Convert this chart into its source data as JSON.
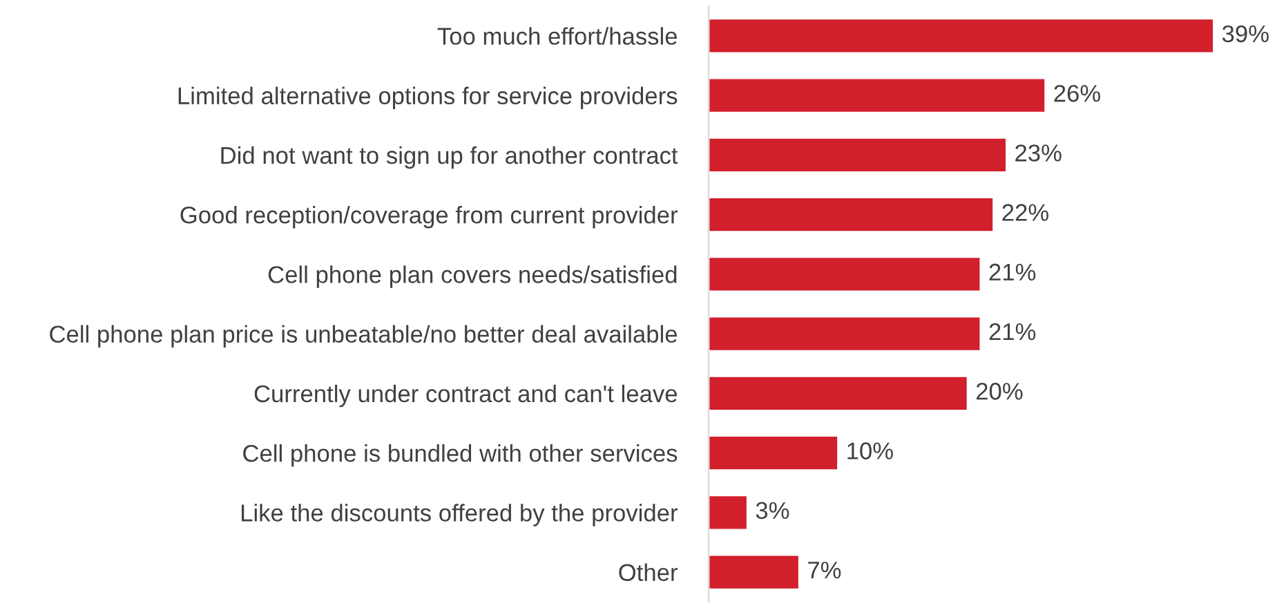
{
  "chart_data": {
    "type": "bar",
    "orientation": "horizontal",
    "categories": [
      "Too much effort/hassle",
      "Limited alternative options for service providers",
      "Did not want to sign up for another contract",
      "Good reception/coverage from current provider",
      "Cell phone plan covers needs/satisfied",
      "Cell phone plan price is unbeatable/no better deal available",
      "Currently under contract and can't leave",
      "Cell phone is bundled with other services",
      "Like the discounts offered by the provider",
      "Other"
    ],
    "values": [
      39,
      26,
      23,
      22,
      21,
      21,
      20,
      10,
      3,
      7
    ],
    "value_labels": [
      "39%",
      "26%",
      "23%",
      "22%",
      "21%",
      "21%",
      "20%",
      "10%",
      "3%",
      "7%"
    ],
    "color": "#d21f2c",
    "tick_labels": "y",
    "grid": false,
    "legend": false
  }
}
